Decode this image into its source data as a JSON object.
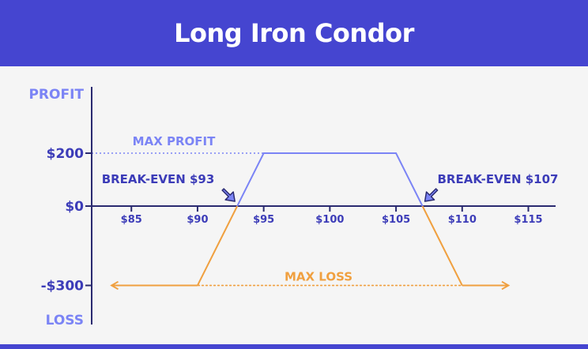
{
  "header": {
    "title": "Long Iron Condor"
  },
  "chart_data": {
    "type": "line",
    "title": "Long Iron Condor",
    "x_tick_labels": [
      "$85",
      "$90",
      "$95",
      "$100",
      "$105",
      "$110",
      "$115"
    ],
    "x_ticks": [
      85,
      90,
      95,
      100,
      105,
      110,
      115
    ],
    "y_tick_labels": [
      "$200",
      "$0",
      "-$300"
    ],
    "y_ticks": [
      200,
      0,
      -300
    ],
    "y_axis_top_label": "PROFIT",
    "y_axis_bottom_label": "LOSS",
    "xlim": [
      82,
      117
    ],
    "ylim": [
      -440,
      380
    ],
    "profit_segment": {
      "points": [
        [
          93,
          0
        ],
        [
          95,
          200
        ],
        [
          105,
          200
        ],
        [
          107,
          0
        ]
      ]
    },
    "loss_segments": [
      {
        "points": [
          [
            90,
            -300
          ],
          [
            93,
            0
          ]
        ]
      },
      {
        "points": [
          [
            107,
            0
          ],
          [
            110,
            -300
          ]
        ]
      }
    ],
    "max_profit": {
      "label": "MAX PROFIT",
      "value": 200
    },
    "max_loss": {
      "label": "MAX LOSS",
      "value": -300,
      "x_range": [
        83.5,
        113.5
      ]
    },
    "break_even": [
      {
        "label": "BREAK-EVEN $93",
        "x": 93
      },
      {
        "label": "BREAK-EVEN $107",
        "x": 107
      }
    ],
    "colors": {
      "header": "#4545d0",
      "axis": "#2a2a70",
      "profit": "#7b84f5",
      "loss": "#f0a040",
      "label_dark": "#3c3cb8",
      "label_light": "#7b84f5"
    }
  }
}
